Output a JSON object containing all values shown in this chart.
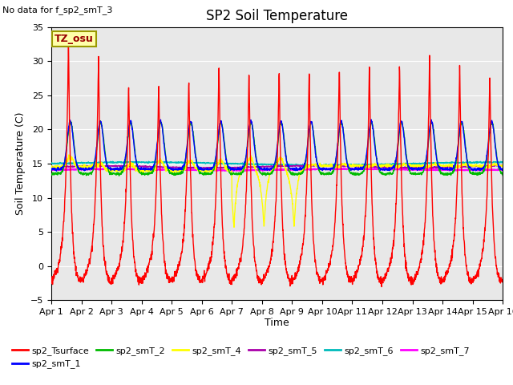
{
  "title": "SP2 Soil Temperature",
  "subtitle": "No data for f_sp2_smT_3",
  "xlabel": "Time",
  "ylabel": "Soil Temperature (C)",
  "tz_label": "TZ_osu",
  "ylim": [
    -5,
    35
  ],
  "xlim": [
    0,
    15
  ],
  "x_ticks": [
    0,
    1,
    2,
    3,
    4,
    5,
    6,
    7,
    8,
    9,
    10,
    11,
    12,
    13,
    14,
    15
  ],
  "x_tick_labels": [
    "Apr 1",
    "Apr 2",
    "Apr 3",
    "Apr 4",
    "Apr 5",
    "Apr 6",
    "Apr 7",
    "Apr 8",
    "Apr 9",
    "Apr 10",
    "Apr 11",
    "Apr 12",
    "Apr 13",
    "Apr 14",
    "Apr 15",
    "Apr 16"
  ],
  "bg_color": "#e8e8e8",
  "grid_color": "#ffffff",
  "series_colors": {
    "sp2_Tsurface": "#ff0000",
    "sp2_smT_1": "#0000ff",
    "sp2_smT_2": "#00bb00",
    "sp2_smT_4": "#ffff00",
    "sp2_smT_5": "#aa00aa",
    "sp2_smT_6": "#00bbbb",
    "sp2_smT_7": "#ff00ff"
  },
  "linewidth": 1.0,
  "title_fontsize": 12,
  "axis_fontsize": 9,
  "tick_fontsize": 8,
  "legend_fontsize": 8
}
